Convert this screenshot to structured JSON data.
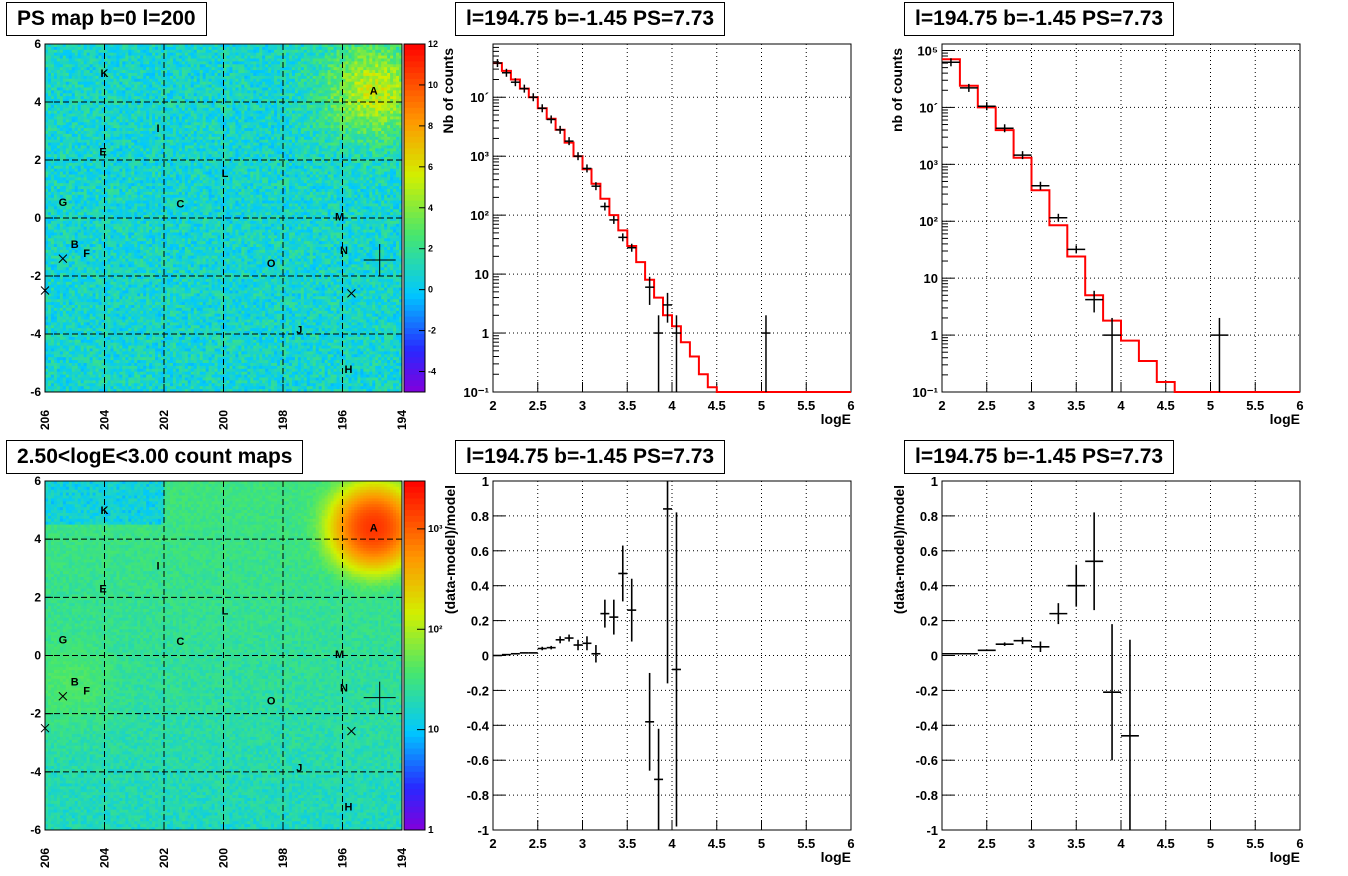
{
  "chart_data": [
    {
      "type": "heatmap",
      "title": "PS map b=0 l=200",
      "x_ticks": [
        "206",
        "204",
        "202",
        "200",
        "198",
        "196",
        "194"
      ],
      "y_ticks": [
        "6",
        "4",
        "2",
        "0",
        "-2",
        "-4",
        "-6"
      ],
      "xlim": [
        206,
        194
      ],
      "ylim": [
        -6,
        6
      ],
      "colorbar": {
        "scale": "linear",
        "range": [
          -5,
          12
        ],
        "ticks": [
          "12",
          "10",
          "8",
          "6",
          "4",
          "2",
          "0",
          "-2",
          "-4"
        ]
      },
      "grid": true,
      "sources": [
        {
          "name": "K",
          "l": 204.0,
          "b": 5.0
        },
        {
          "name": "A",
          "l": 194.95,
          "b": 4.4
        },
        {
          "name": "I",
          "l": 202.2,
          "b": 3.1
        },
        {
          "name": "E",
          "l": 204.05,
          "b": 2.3
        },
        {
          "name": "L",
          "l": 199.95,
          "b": 1.55
        },
        {
          "name": "G",
          "l": 205.4,
          "b": 0.55
        },
        {
          "name": "C",
          "l": 201.45,
          "b": 0.5
        },
        {
          "name": "M",
          "l": 196.1,
          "b": 0.05
        },
        {
          "name": "B",
          "l": 205.0,
          "b": -0.9
        },
        {
          "name": "F",
          "l": 204.6,
          "b": -1.2
        },
        {
          "name": "N",
          "l": 195.95,
          "b": -1.1
        },
        {
          "name": "O",
          "l": 198.4,
          "b": -1.55
        },
        {
          "name": "J",
          "l": 197.45,
          "b": -3.85
        },
        {
          "name": "H",
          "l": 195.8,
          "b": -5.2
        }
      ]
    },
    {
      "type": "histogram",
      "title": "l=194.75 b=-1.45 PS=7.73",
      "xlabel": "logE",
      "ylabel": "Nb of counts",
      "xlim": [
        2,
        6
      ],
      "ylim": [
        0.1,
        80000
      ],
      "yscale": "log",
      "x_ticks": [
        "2",
        "2.5",
        "3",
        "3.5",
        "4",
        "4.5",
        "5",
        "5.5",
        "6"
      ],
      "y_ticks": [
        "10´",
        "10³",
        "10²",
        "10",
        "1",
        "10⁻¹"
      ],
      "grid": true,
      "model_color": "#ff0000",
      "data": [
        {
          "x": 2.05,
          "y": 38000,
          "ex": 0.05
        },
        {
          "x": 2.15,
          "y": 26000,
          "ex": 0.05
        },
        {
          "x": 2.25,
          "y": 18000,
          "ex": 0.05
        },
        {
          "x": 2.35,
          "y": 14000,
          "ex": 0.05
        },
        {
          "x": 2.45,
          "y": 10000,
          "ex": 0.05
        },
        {
          "x": 2.55,
          "y": 6500,
          "ex": 0.05
        },
        {
          "x": 2.65,
          "y": 4200,
          "ex": 0.05
        },
        {
          "x": 2.75,
          "y": 2800,
          "ex": 0.05
        },
        {
          "x": 2.85,
          "y": 1800,
          "ex": 0.05
        },
        {
          "x": 2.95,
          "y": 1000,
          "ex": 0.05
        },
        {
          "x": 3.05,
          "y": 620,
          "ex": 0.05
        },
        {
          "x": 3.15,
          "y": 310,
          "ex": 0.05
        },
        {
          "x": 3.25,
          "y": 140,
          "ex": 0.05
        },
        {
          "x": 3.35,
          "y": 83,
          "ex": 0.05
        },
        {
          "x": 3.45,
          "y": 42,
          "ex": 0.05
        },
        {
          "x": 3.55,
          "y": 28,
          "ex": 0.05
        },
        {
          "x": 3.75,
          "y": 6,
          "ex": 0.05,
          "elo": 3,
          "ehi": 9
        },
        {
          "x": 3.85,
          "y": 1,
          "ex": 0.05,
          "elo": 0.08,
          "ehi": 2
        },
        {
          "x": 3.95,
          "y": 3,
          "ex": 0.05,
          "elo": 1.5,
          "ehi": 4.8
        },
        {
          "x": 4.05,
          "y": 1,
          "ex": 0.05,
          "elo": 0.08,
          "ehi": 2
        },
        {
          "x": 5.05,
          "y": 1,
          "ex": 0.05,
          "elo": 0.08,
          "ehi": 2
        }
      ],
      "model": {
        "edges": [
          2.0,
          2.1,
          2.2,
          2.3,
          2.4,
          2.5,
          2.6,
          2.7,
          2.8,
          2.9,
          3.0,
          3.1,
          3.2,
          3.3,
          3.4,
          3.5,
          3.6,
          3.7,
          3.8,
          3.9,
          4.0,
          4.1,
          4.2,
          4.3,
          4.4,
          4.5,
          6.0
        ],
        "values": [
          38000,
          28000,
          20000,
          14000,
          10000,
          6500,
          4300,
          2800,
          1700,
          1000,
          600,
          340,
          190,
          100,
          55,
          30,
          16,
          8,
          4,
          2,
          1.3,
          0.7,
          0.4,
          0.2,
          0.12,
          0.1
        ]
      }
    },
    {
      "type": "histogram",
      "title": "l=194.75 b=-1.45 PS=7.73",
      "xlabel": "logE",
      "ylabel": "nb of counts",
      "xlim": [
        2,
        6
      ],
      "ylim": [
        0.1,
        130000
      ],
      "yscale": "log",
      "x_ticks": [
        "2",
        "2.5",
        "3",
        "3.5",
        "4",
        "4.5",
        "5",
        "5.5",
        "6"
      ],
      "y_ticks": [
        "10⁵",
        "10´",
        "10³",
        "10²",
        "10",
        "1",
        "10⁻¹"
      ],
      "grid": true,
      "model_color": "#ff0000",
      "data": [
        {
          "x": 2.1,
          "y": 62000,
          "ex": 0.1
        },
        {
          "x": 2.3,
          "y": 22000,
          "ex": 0.1
        },
        {
          "x": 2.5,
          "y": 10500,
          "ex": 0.1
        },
        {
          "x": 2.7,
          "y": 4300,
          "ex": 0.1
        },
        {
          "x": 2.9,
          "y": 1450,
          "ex": 0.1
        },
        {
          "x": 3.1,
          "y": 420,
          "ex": 0.1
        },
        {
          "x": 3.3,
          "y": 115,
          "ex": 0.1
        },
        {
          "x": 3.5,
          "y": 32,
          "ex": 0.1
        },
        {
          "x": 3.7,
          "y": 4.2,
          "ex": 0.1,
          "elo": 2.5,
          "ehi": 6
        },
        {
          "x": 3.9,
          "y": 1,
          "ex": 0.1,
          "elo": 0.08,
          "ehi": 2
        },
        {
          "x": 5.1,
          "y": 1,
          "ex": 0.1,
          "elo": 0.08,
          "ehi": 2
        }
      ],
      "model": {
        "edges": [
          2.0,
          2.2,
          2.4,
          2.6,
          2.8,
          3.0,
          3.2,
          3.4,
          3.6,
          3.8,
          4.0,
          4.2,
          4.4,
          4.6,
          4.8,
          6.0
        ],
        "values": [
          70000,
          24000,
          10000,
          4000,
          1300,
          350,
          85,
          24,
          5,
          1.8,
          0.8,
          0.35,
          0.15,
          0.1,
          0.1
        ]
      }
    },
    {
      "type": "heatmap",
      "title": "2.50<logE<3.00 count maps",
      "x_ticks": [
        "206",
        "204",
        "202",
        "200",
        "198",
        "196",
        "194"
      ],
      "y_ticks": [
        "6",
        "4",
        "2",
        "0",
        "-2",
        "-4",
        "-6"
      ],
      "xlim": [
        206,
        194
      ],
      "ylim": [
        -6,
        6
      ],
      "colorbar": {
        "scale": "log",
        "range": [
          1,
          3000
        ],
        "ticks": [
          "10³",
          "10²",
          "10",
          "1"
        ]
      },
      "grid": true,
      "sources": [
        {
          "name": "K",
          "l": 204.0,
          "b": 5.0
        },
        {
          "name": "A",
          "l": 194.95,
          "b": 4.4
        },
        {
          "name": "I",
          "l": 202.2,
          "b": 3.1
        },
        {
          "name": "E",
          "l": 204.05,
          "b": 2.3
        },
        {
          "name": "L",
          "l": 199.95,
          "b": 1.55
        },
        {
          "name": "G",
          "l": 205.4,
          "b": 0.55
        },
        {
          "name": "C",
          "l": 201.45,
          "b": 0.5
        },
        {
          "name": "M",
          "l": 196.1,
          "b": 0.05
        },
        {
          "name": "B",
          "l": 205.0,
          "b": -0.9
        },
        {
          "name": "F",
          "l": 204.6,
          "b": -1.2
        },
        {
          "name": "N",
          "l": 195.95,
          "b": -1.1
        },
        {
          "name": "O",
          "l": 198.4,
          "b": -1.55
        },
        {
          "name": "J",
          "l": 197.45,
          "b": -3.85
        },
        {
          "name": "H",
          "l": 195.8,
          "b": -5.2
        }
      ]
    },
    {
      "type": "scatter",
      "title": "l=194.75 b=-1.45 PS=7.73",
      "xlabel": "logE",
      "ylabel": "(data-model)/model",
      "xlim": [
        2,
        6
      ],
      "ylim": [
        -1,
        1
      ],
      "x_ticks": [
        "2",
        "2.5",
        "3",
        "3.5",
        "4",
        "4.5",
        "5",
        "5.5",
        "6"
      ],
      "y_ticks": [
        "1",
        "0.8",
        "0.6",
        "0.4",
        "0.2",
        "0",
        "-0.2",
        "-0.4",
        "-0.6",
        "-0.8",
        "-1"
      ],
      "grid": true,
      "data": [
        {
          "x": 2.05,
          "y": 0.0,
          "ex": 0.05,
          "ey": 0.0
        },
        {
          "x": 2.15,
          "y": 0.005,
          "ex": 0.05,
          "ey": 0.0
        },
        {
          "x": 2.25,
          "y": 0.01,
          "ex": 0.05,
          "ey": 0.0
        },
        {
          "x": 2.35,
          "y": 0.015,
          "ex": 0.05,
          "ey": 0.0
        },
        {
          "x": 2.45,
          "y": 0.015,
          "ex": 0.05,
          "ey": 0.0
        },
        {
          "x": 2.55,
          "y": 0.04,
          "ex": 0.05,
          "ey": 0.01
        },
        {
          "x": 2.65,
          "y": 0.045,
          "ex": 0.05,
          "ey": 0.01
        },
        {
          "x": 2.75,
          "y": 0.09,
          "ex": 0.05,
          "ey": 0.02
        },
        {
          "x": 2.85,
          "y": 0.1,
          "ex": 0.05,
          "ey": 0.02
        },
        {
          "x": 2.95,
          "y": 0.06,
          "ex": 0.05,
          "ey": 0.03
        },
        {
          "x": 3.05,
          "y": 0.07,
          "ex": 0.05,
          "ey": 0.04
        },
        {
          "x": 3.15,
          "y": 0.01,
          "ex": 0.05,
          "ey": 0.05
        },
        {
          "x": 3.25,
          "y": 0.24,
          "ex": 0.05,
          "ey": 0.08
        },
        {
          "x": 3.35,
          "y": 0.22,
          "ex": 0.05,
          "ey": 0.1
        },
        {
          "x": 3.45,
          "y": 0.47,
          "ex": 0.05,
          "ey": 0.16
        },
        {
          "x": 3.55,
          "y": 0.26,
          "ex": 0.05,
          "ey": 0.18
        },
        {
          "x": 3.75,
          "y": -0.38,
          "ex": 0.05,
          "ey": 0.28
        },
        {
          "x": 3.85,
          "y": -0.71,
          "ex": 0.05,
          "ey": 0.29
        },
        {
          "x": 3.95,
          "y": 0.84,
          "ex": 0.05,
          "ey": 1.0
        },
        {
          "x": 4.05,
          "y": -0.08,
          "ex": 0.05,
          "ey": 0.9
        }
      ]
    },
    {
      "type": "scatter",
      "title": "l=194.75 b=-1.45 PS=7.73",
      "xlabel": "logE",
      "ylabel": "(data-model)/model",
      "xlim": [
        2,
        6
      ],
      "ylim": [
        -1,
        1
      ],
      "x_ticks": [
        "2",
        "2.5",
        "3",
        "3.5",
        "4",
        "4.5",
        "5",
        "5.5",
        "6"
      ],
      "y_ticks": [
        "1",
        "0.8",
        "0.6",
        "0.4",
        "0.2",
        "0",
        "-0.2",
        "-0.4",
        "-0.6",
        "-0.8",
        "-1"
      ],
      "grid": true,
      "data": [
        {
          "x": 2.1,
          "y": 0.01,
          "ex": 0.1,
          "ey": 0.0
        },
        {
          "x": 2.3,
          "y": 0.01,
          "ex": 0.1,
          "ey": 0.0
        },
        {
          "x": 2.5,
          "y": 0.03,
          "ex": 0.1,
          "ey": 0.0
        },
        {
          "x": 2.7,
          "y": 0.065,
          "ex": 0.1,
          "ey": 0.01
        },
        {
          "x": 2.9,
          "y": 0.085,
          "ex": 0.1,
          "ey": 0.02
        },
        {
          "x": 3.1,
          "y": 0.05,
          "ex": 0.1,
          "ey": 0.03
        },
        {
          "x": 3.3,
          "y": 0.24,
          "ex": 0.1,
          "ey": 0.06
        },
        {
          "x": 3.5,
          "y": 0.4,
          "ex": 0.1,
          "ey": 0.12
        },
        {
          "x": 3.7,
          "y": 0.54,
          "ex": 0.1,
          "ey": 0.28
        },
        {
          "x": 3.9,
          "y": -0.21,
          "ex": 0.1,
          "ey": 0.39
        },
        {
          "x": 4.1,
          "y": -0.46,
          "ex": 0.1,
          "ey": 0.55
        }
      ]
    }
  ]
}
